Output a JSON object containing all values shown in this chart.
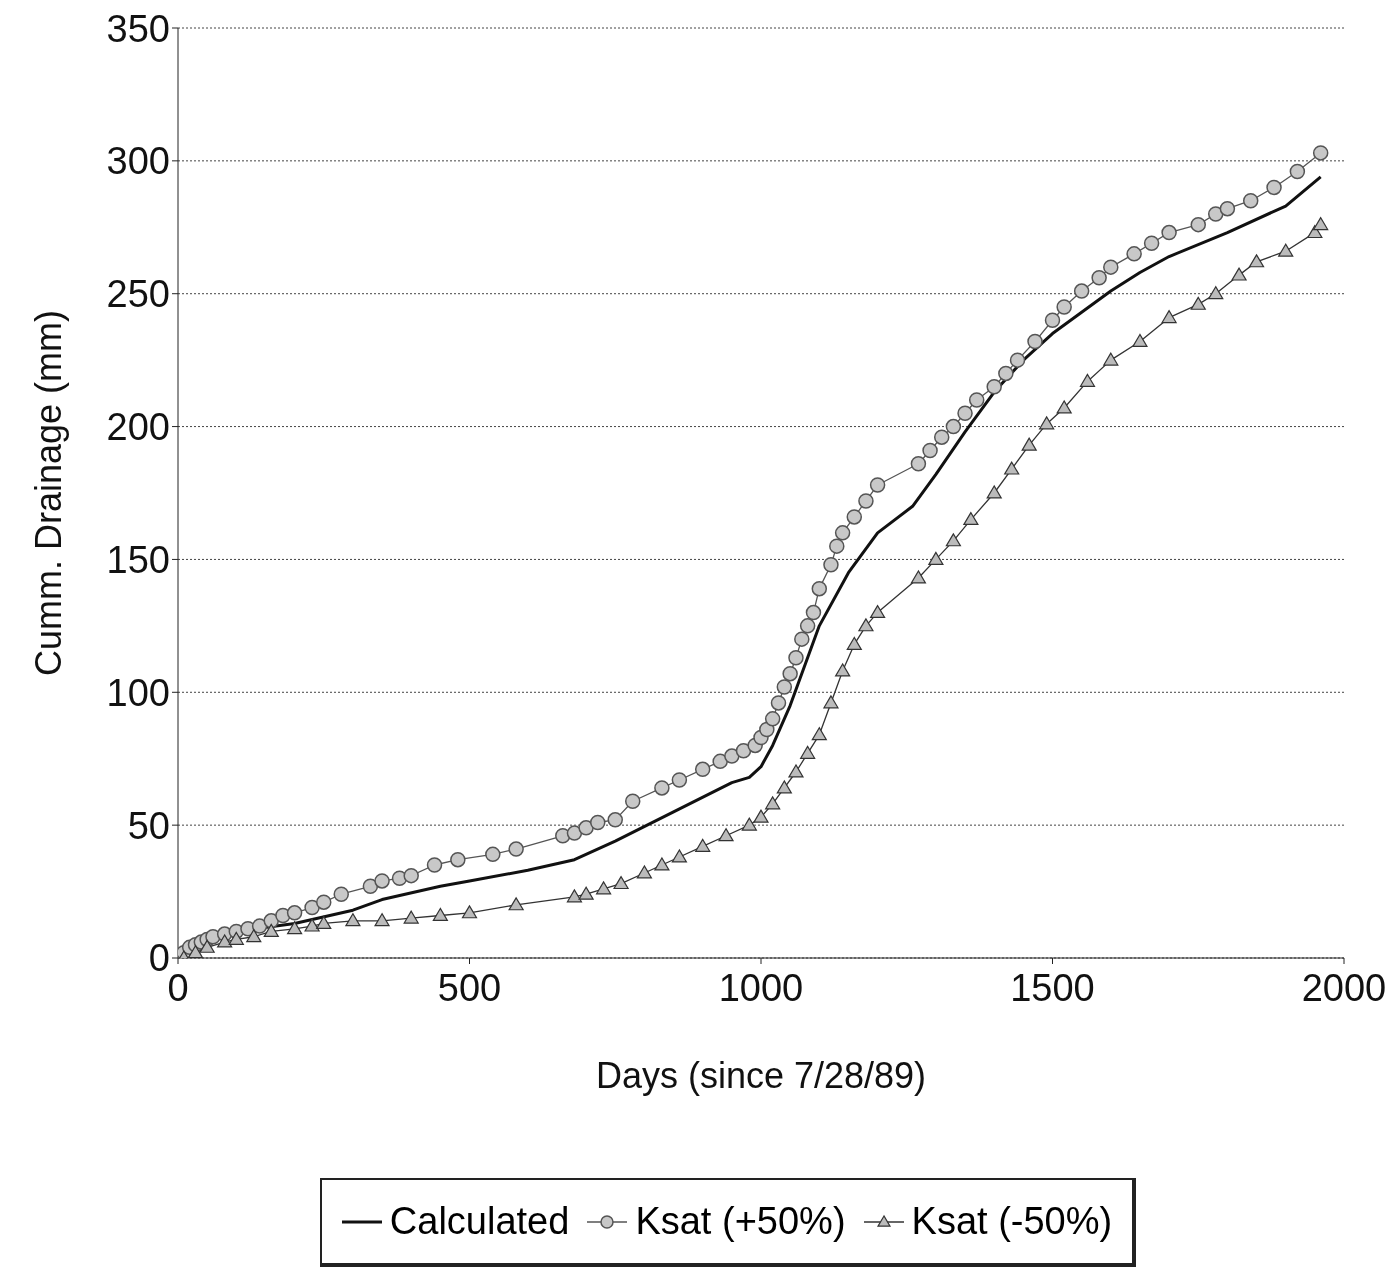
{
  "chart_data": {
    "type": "line",
    "xlabel": "Days (since 7/28/89)",
    "ylabel": "Cumm. Drainage (mm)",
    "xlim": [
      0,
      2000
    ],
    "xticks": [
      0,
      500,
      1000,
      1500,
      2000
    ],
    "ylim": [
      0,
      350
    ],
    "yticks": [
      0,
      50,
      100,
      150,
      200,
      250,
      300,
      350
    ],
    "grid": "y",
    "legend": "bottom",
    "series": [
      {
        "name": "Calculated",
        "color": "#111111",
        "marker": "none",
        "x": [
          0,
          50,
          100,
          200,
          300,
          350,
          450,
          500,
          600,
          680,
          750,
          850,
          950,
          980,
          1000,
          1020,
          1050,
          1100,
          1150,
          1200,
          1260,
          1300,
          1350,
          1400,
          1450,
          1500,
          1550,
          1600,
          1650,
          1700,
          1800,
          1900,
          1960
        ],
        "values": [
          0,
          8,
          10,
          13,
          18,
          22,
          27,
          29,
          33,
          37,
          44,
          55,
          66,
          68,
          72,
          80,
          95,
          125,
          145,
          160,
          170,
          182,
          198,
          213,
          225,
          235,
          243,
          251,
          258,
          264,
          273,
          283,
          294
        ]
      },
      {
        "name": "Ksat (+50%)",
        "color": "#555555",
        "marker": "circle",
        "x": [
          10,
          20,
          30,
          40,
          50,
          60,
          80,
          100,
          120,
          140,
          160,
          180,
          200,
          230,
          250,
          280,
          330,
          350,
          380,
          400,
          440,
          480,
          540,
          580,
          660,
          680,
          700,
          720,
          750,
          780,
          830,
          860,
          900,
          930,
          950,
          970,
          990,
          1000,
          1010,
          1020,
          1030,
          1040,
          1050,
          1060,
          1070,
          1080,
          1090,
          1100,
          1120,
          1130,
          1140,
          1160,
          1180,
          1200,
          1270,
          1290,
          1310,
          1330,
          1350,
          1370,
          1400,
          1420,
          1440,
          1470,
          1500,
          1520,
          1550,
          1580,
          1600,
          1640,
          1670,
          1700,
          1750,
          1780,
          1800,
          1840,
          1880,
          1920,
          1960
        ],
        "values": [
          2,
          4,
          5,
          6,
          7,
          8,
          9,
          10,
          11,
          12,
          14,
          16,
          17,
          19,
          21,
          24,
          27,
          29,
          30,
          31,
          35,
          37,
          39,
          41,
          46,
          47,
          49,
          51,
          52,
          59,
          64,
          67,
          71,
          74,
          76,
          78,
          80,
          83,
          86,
          90,
          96,
          102,
          107,
          113,
          120,
          125,
          130,
          139,
          148,
          155,
          160,
          166,
          172,
          178,
          186,
          191,
          196,
          200,
          205,
          210,
          215,
          220,
          225,
          232,
          240,
          245,
          251,
          256,
          260,
          265,
          269,
          273,
          276,
          280,
          282,
          285,
          290,
          296,
          303
        ]
      },
      {
        "name": "Ksat (-50%)",
        "color": "#333333",
        "marker": "triangle",
        "x": [
          10,
          30,
          50,
          80,
          100,
          130,
          160,
          200,
          230,
          250,
          300,
          350,
          400,
          450,
          500,
          580,
          680,
          700,
          730,
          760,
          800,
          830,
          860,
          900,
          940,
          980,
          1000,
          1020,
          1040,
          1060,
          1080,
          1100,
          1120,
          1140,
          1160,
          1180,
          1200,
          1270,
          1300,
          1330,
          1360,
          1400,
          1430,
          1460,
          1490,
          1520,
          1560,
          1600,
          1650,
          1700,
          1750,
          1780,
          1820,
          1850,
          1900,
          1950,
          1960
        ],
        "values": [
          0,
          2,
          4,
          6,
          7,
          8,
          10,
          11,
          12,
          13,
          14,
          14,
          15,
          16,
          17,
          20,
          23,
          24,
          26,
          28,
          32,
          35,
          38,
          42,
          46,
          50,
          53,
          58,
          64,
          70,
          77,
          84,
          96,
          108,
          118,
          125,
          130,
          143,
          150,
          157,
          165,
          175,
          184,
          193,
          201,
          207,
          217,
          225,
          232,
          241,
          246,
          250,
          257,
          262,
          266,
          273,
          276
        ]
      }
    ]
  }
}
